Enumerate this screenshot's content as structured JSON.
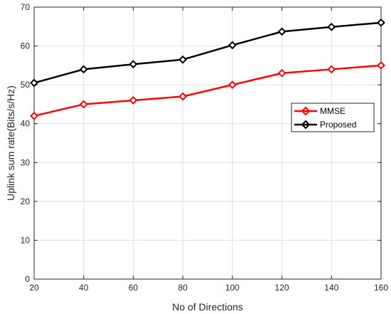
{
  "chart_data": {
    "type": "line",
    "xlabel": "No of Directions",
    "ylabel": "Uplink sum rate(Bits/s/Hz)",
    "x": [
      20,
      40,
      60,
      80,
      100,
      120,
      140,
      160
    ],
    "xlim": [
      20,
      160
    ],
    "ylim": [
      0,
      70
    ],
    "xticks": [
      20,
      40,
      60,
      80,
      100,
      120,
      140,
      160
    ],
    "yticks": [
      0,
      10,
      20,
      30,
      40,
      50,
      60,
      70
    ],
    "grid": true,
    "legend_position": "right",
    "series": [
      {
        "name": "MMSE",
        "color": "#ff0000",
        "marker": "diamond",
        "values": [
          42,
          45,
          46,
          47,
          50,
          53,
          54,
          55
        ]
      },
      {
        "name": "Proposed",
        "color": "#000000",
        "marker": "diamond",
        "values": [
          50.5,
          54,
          55.3,
          56.5,
          60.2,
          63.7,
          64.9,
          66
        ]
      }
    ]
  }
}
